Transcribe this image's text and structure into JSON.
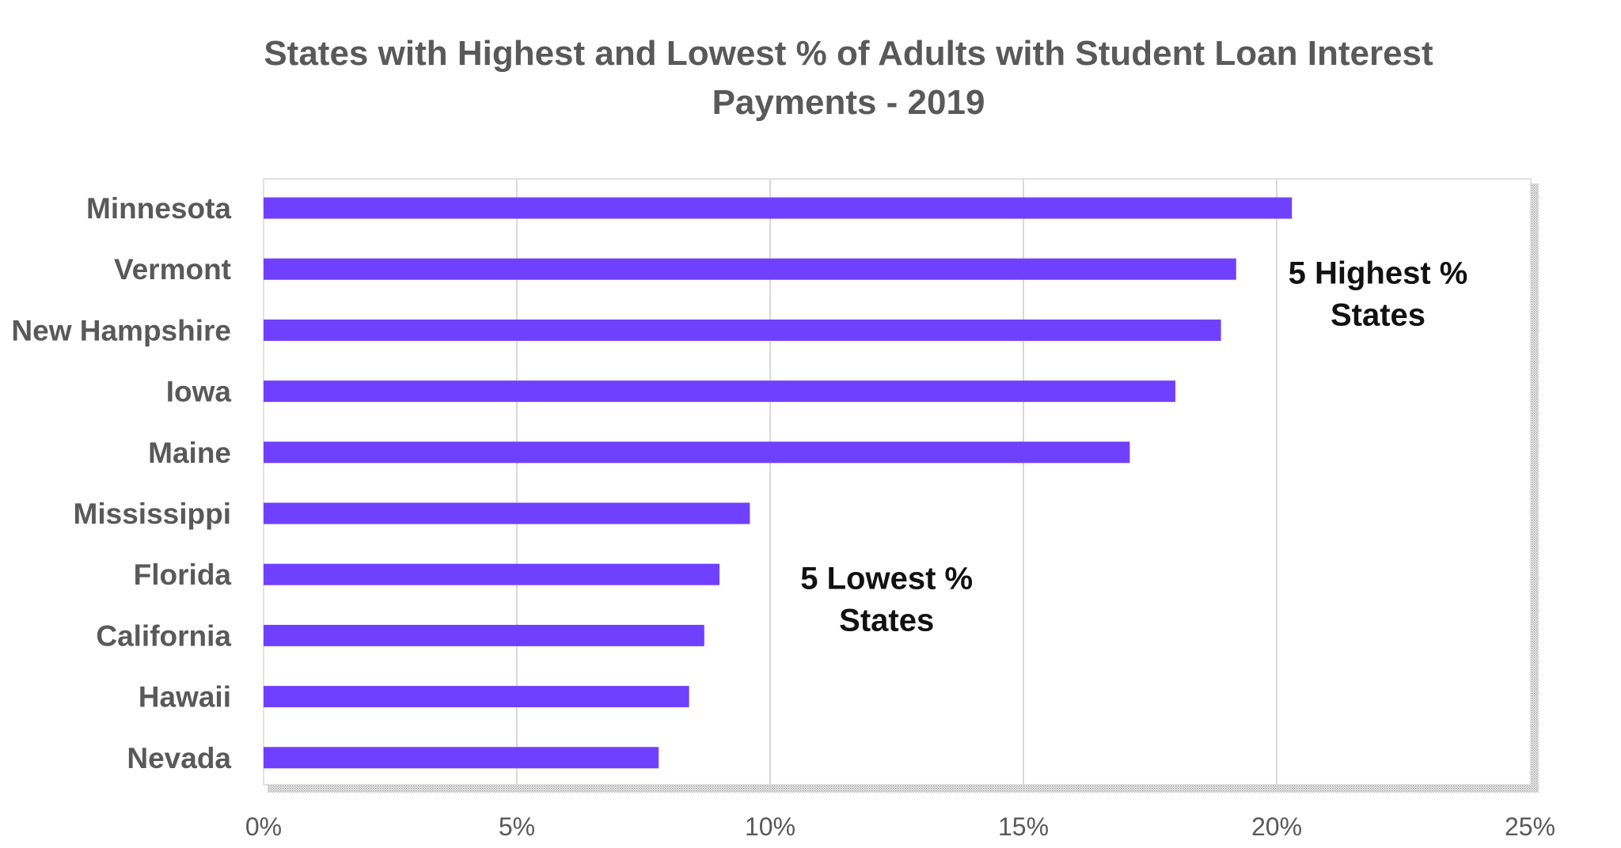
{
  "chart_data": {
    "type": "bar",
    "orientation": "horizontal",
    "title_lines": [
      "States with Highest and Lowest % of Adults with Student Loan Interest",
      "Payments - 2019"
    ],
    "categories": [
      "Minnesota",
      "Vermont",
      "New Hampshire",
      "Iowa",
      "Maine",
      "Mississippi",
      "Florida",
      "California",
      "Hawaii",
      "Nevada"
    ],
    "values": [
      20.3,
      19.2,
      18.9,
      18.0,
      17.1,
      9.6,
      9.0,
      8.7,
      8.4,
      7.8
    ],
    "xlim": [
      0,
      25
    ],
    "xticks": [
      0,
      5,
      10,
      15,
      20,
      25
    ],
    "xtick_labels": [
      "0%",
      "5%",
      "10%",
      "15%",
      "20%",
      "25%"
    ],
    "grid": true,
    "bar_color": "#7040FF",
    "annotations": [
      {
        "lines": [
          "5 Highest %",
          "States"
        ],
        "x": 22,
        "y": "Vermont"
      },
      {
        "lines": [
          "5 Lowest %",
          "States"
        ],
        "x": 12.3,
        "y": "Florida"
      }
    ]
  }
}
